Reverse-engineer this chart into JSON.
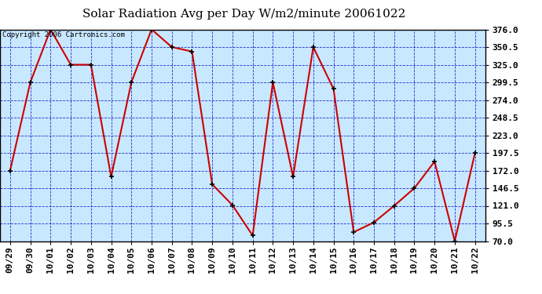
{
  "title": "Solar Radiation Avg per Day W/m2/minute 20061022",
  "copyright_text": "Copyright 2006 Cartronics.com",
  "x_labels": [
    "09/29",
    "09/30",
    "10/01",
    "10/02",
    "10/03",
    "10/04",
    "10/05",
    "10/06",
    "10/07",
    "10/08",
    "10/09",
    "10/10",
    "10/11",
    "10/12",
    "10/13",
    "10/14",
    "10/15",
    "10/16",
    "10/17",
    "10/18",
    "10/19",
    "10/20",
    "10/21",
    "10/22"
  ],
  "y_values": [
    172.0,
    299.5,
    376.0,
    325.0,
    325.0,
    163.0,
    299.5,
    376.0,
    350.5,
    344.0,
    152.0,
    122.0,
    78.0,
    299.5,
    163.0,
    350.5,
    290.0,
    83.0,
    97.0,
    121.0,
    146.5,
    185.0,
    70.0,
    197.5
  ],
  "ylim_min": 70.0,
  "ylim_max": 376.0,
  "yticks": [
    70.0,
    95.5,
    121.0,
    146.5,
    172.0,
    197.5,
    223.0,
    248.5,
    274.0,
    299.5,
    325.0,
    350.5,
    376.0
  ],
  "line_color": "#CC0000",
  "marker_color": "#000000",
  "bg_color": "#C8E8FF",
  "outer_bg": "#FFFFFF",
  "grid_color": "#0000BB",
  "title_fontsize": 11,
  "copyright_fontsize": 6.5,
  "tick_label_fontsize": 8,
  "y_tick_fontsize": 8
}
